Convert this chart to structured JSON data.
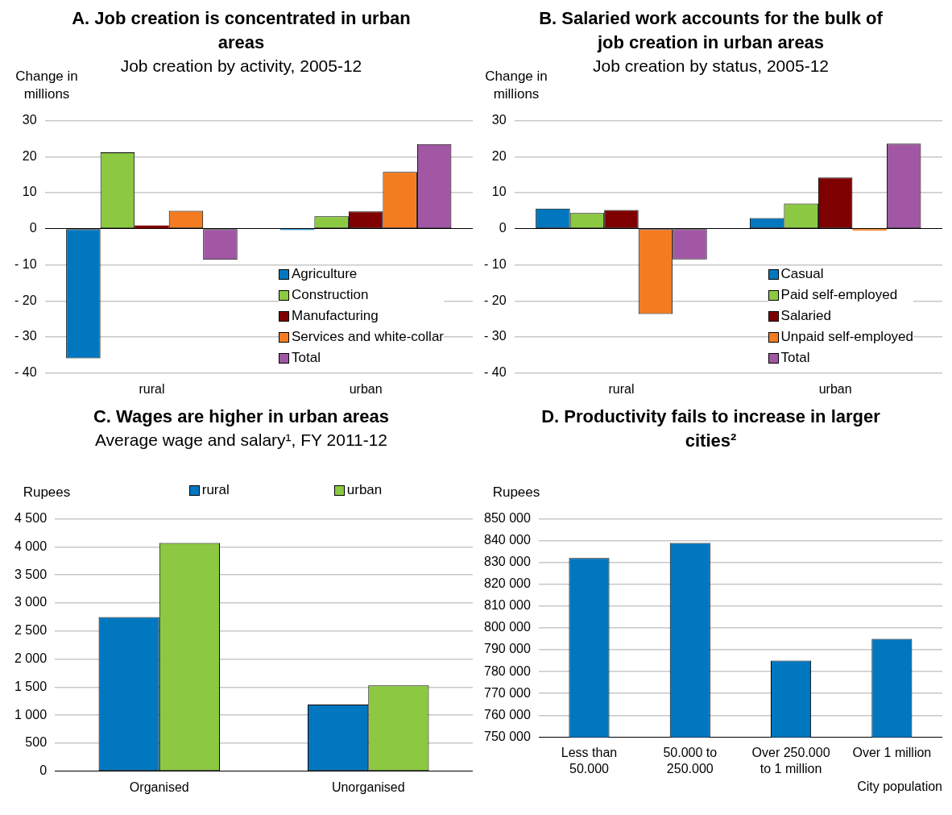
{
  "chart_data": [
    {
      "type": "bar",
      "title": "A. Job creation is concentrated in urban areas",
      "subtitle": "Job creation by activity, 2005-12",
      "ylabel": "Change in millions",
      "categories": [
        "rural",
        "urban"
      ],
      "series": [
        {
          "name": "Agriculture",
          "color": "#0077bf",
          "values": [
            -35.9,
            -0.3
          ]
        },
        {
          "name": "Construction",
          "color": "#8cc841",
          "values": [
            21.2,
            3.5
          ]
        },
        {
          "name": "Manufacturing",
          "color": "#7f0000",
          "values": [
            0.9,
            4.8
          ]
        },
        {
          "name": "Services and white-collar",
          "color": "#f47c20",
          "values": [
            5.0,
            15.8
          ]
        },
        {
          "name": "Total",
          "color": "#a157a3",
          "values": [
            -8.6,
            23.5
          ]
        }
      ],
      "ylim": [
        -40,
        30
      ],
      "yticks": [
        {
          "value": -40,
          "label": "- 40"
        },
        {
          "value": -30,
          "label": "- 30"
        },
        {
          "value": -20,
          "label": "- 20"
        },
        {
          "value": -10,
          "label": "- 10"
        },
        0,
        10,
        20,
        30
      ],
      "grid": "y",
      "legend": "bottom right"
    },
    {
      "type": "bar",
      "title": "B. Salaried work accounts for the bulk of job creation in urban areas",
      "subtitle": "Job creation by status,  2005-12",
      "ylabel": "Change in millions",
      "categories": [
        "rural",
        "urban"
      ],
      "series": [
        {
          "name": "Casual",
          "color": "#0077bf",
          "values": [
            5.6,
            3.0
          ]
        },
        {
          "name": "Paid self-employed",
          "color": "#8cc841",
          "values": [
            4.4,
            7.0
          ]
        },
        {
          "name": "Salaried",
          "color": "#7f0000",
          "values": [
            5.2,
            14.2
          ]
        },
        {
          "name": "Unpaid self-employed",
          "color": "#f47c20",
          "values": [
            -23.6,
            -0.5
          ]
        },
        {
          "name": "Total",
          "color": "#a157a3",
          "values": [
            -8.5,
            23.6
          ]
        }
      ],
      "ylim": [
        -40,
        30
      ],
      "yticks": [
        {
          "value": -40,
          "label": "- 40"
        },
        {
          "value": -30,
          "label": "- 30"
        },
        {
          "value": -20,
          "label": "- 20"
        },
        {
          "value": -10,
          "label": "- 10"
        },
        0,
        10,
        20,
        30
      ],
      "grid": "y",
      "legend": "bottom right"
    },
    {
      "type": "bar",
      "title": "C. Wages are higher in urban areas",
      "subtitle": "Average wage and salary¹, FY 2011-12",
      "ylabel": "Rupees",
      "categories": [
        "Organised",
        "Unorganised"
      ],
      "series": [
        {
          "name": "rural",
          "color": "#0077bf",
          "values": [
            2750,
            1190
          ]
        },
        {
          "name": "urban",
          "color": "#8cc841",
          "values": [
            4070,
            1530
          ]
        }
      ],
      "ylim": [
        0,
        4500
      ],
      "yticks": [
        0,
        500,
        {
          "value": 1000,
          "label": "1 000"
        },
        {
          "value": 1500,
          "label": "1 500"
        },
        {
          "value": 2000,
          "label": "2 000"
        },
        {
          "value": 2500,
          "label": "2 500"
        },
        {
          "value": 3000,
          "label": "3 000"
        },
        {
          "value": 3500,
          "label": "3 500"
        },
        {
          "value": 4000,
          "label": "4 000"
        },
        {
          "value": 4500,
          "label": "4 500"
        }
      ],
      "grid": "y",
      "legend": "top"
    },
    {
      "type": "bar",
      "title": "D. Productivity fails to increase in larger cities²",
      "ylabel": "Rupees",
      "xlabel": "City population",
      "categories": [
        "Less than 50.000",
        "50.000 to 250.000",
        "Over 250.000 to 1 million",
        "Over 1 million"
      ],
      "values": [
        832000,
        839000,
        785000,
        795000
      ],
      "color": "#0077bf",
      "ylim": [
        750000,
        850000
      ],
      "yticks": [
        {
          "value": 750000,
          "label": "750 000"
        },
        {
          "value": 760000,
          "label": "760 000"
        },
        {
          "value": 770000,
          "label": "770 000"
        },
        {
          "value": 780000,
          "label": "780 000"
        },
        {
          "value": 790000,
          "label": "790 000"
        },
        {
          "value": 800000,
          "label": "800 000"
        },
        {
          "value": 810000,
          "label": "810 000"
        },
        {
          "value": 820000,
          "label": "820 000"
        },
        {
          "value": 830000,
          "label": "830 000"
        },
        {
          "value": 840000,
          "label": "840 000"
        },
        {
          "value": 850000,
          "label": "850 000"
        }
      ],
      "grid": "y"
    }
  ]
}
